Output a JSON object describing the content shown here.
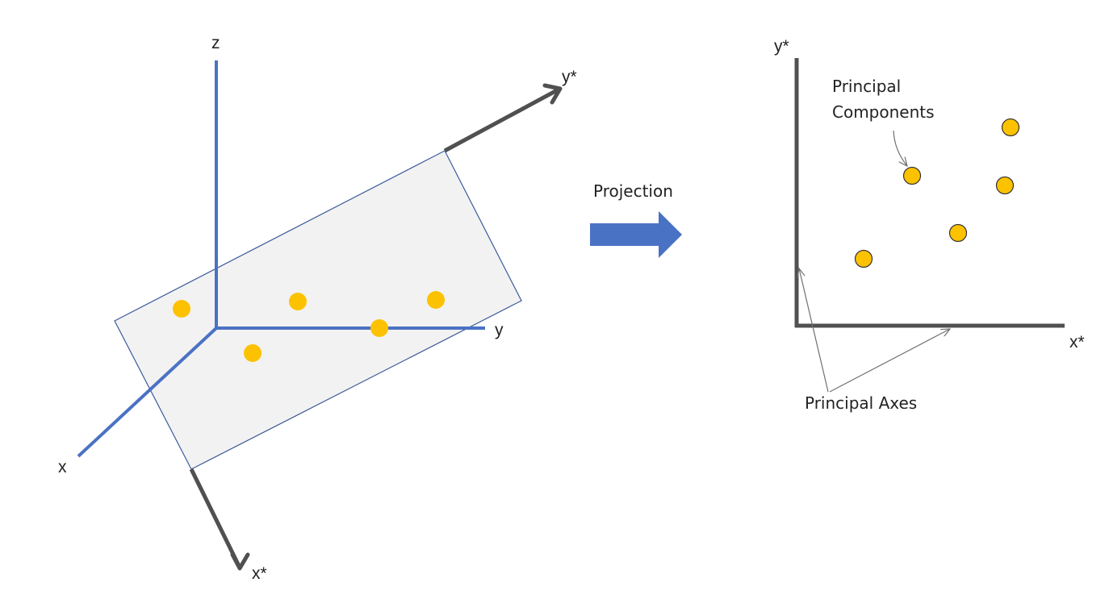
{
  "colors": {
    "background": "#ffffff",
    "original_axis": "#4a72c4",
    "principal_axis": "#505050",
    "plane_fill": "#f2f2f2",
    "plane_stroke": "#3b5a9a",
    "point_fill": "#fcc200",
    "point_stroke": "#333333",
    "projection_arrow": "#4a72c4",
    "annotation_line": "#707070",
    "text": "#222222"
  },
  "left_panel": {
    "axis_labels": {
      "z": "z",
      "y": "y",
      "x": "x",
      "y_star": "y*",
      "x_star": "x*"
    }
  },
  "projection": {
    "label": "Projection",
    "arrow_icon": "right-block-arrow-icon"
  },
  "right_panel": {
    "axis_labels": {
      "y_star": "y*",
      "x_star": "x*"
    },
    "components_label": {
      "line1": "Principal",
      "line2": "Components"
    },
    "axes_label": "Principal Axes"
  }
}
